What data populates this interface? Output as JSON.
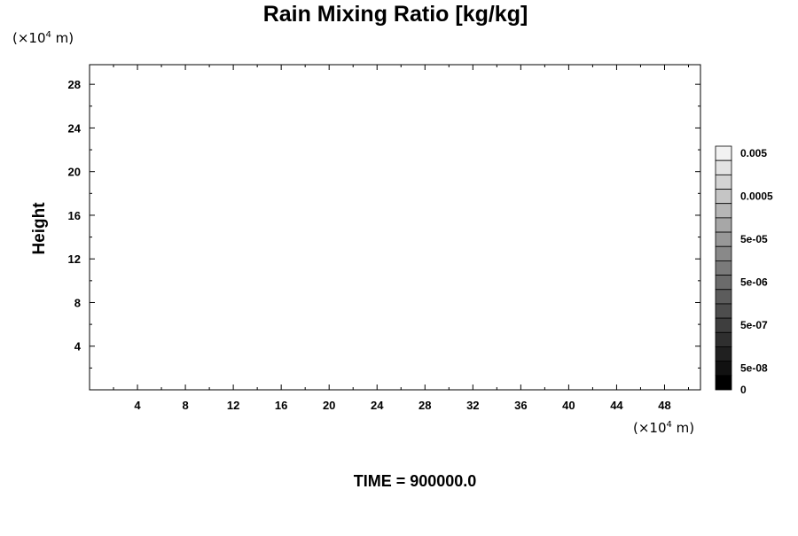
{
  "chart_data": {
    "type": "heatmap",
    "title": "Rain Mixing Ratio [kg/kg]",
    "xlabel": "",
    "ylabel": "Height",
    "x_unit": "(×10⁴ m)",
    "y_unit": "(×10⁴ m)",
    "unit_prefix": "(×10",
    "unit_exp": "4",
    "unit_suffix": " m)",
    "xlim": [
      0,
      51
    ],
    "ylim": [
      0,
      29.8
    ],
    "x_ticks": [
      4,
      8,
      12,
      16,
      20,
      24,
      28,
      32,
      36,
      40,
      44,
      48
    ],
    "y_ticks": [
      4,
      8,
      12,
      16,
      20,
      24,
      28
    ],
    "x_minor_step": 2,
    "y_minor_step": 2,
    "values": [],
    "colorbar": {
      "labels": [
        "0.005",
        "0.0005",
        "5e-05",
        "5e-06",
        "5e-07",
        "5e-08",
        "0"
      ],
      "colors": [
        "#f2f2f2",
        "#e3e3e3",
        "#d4d4d4",
        "#c5c5c5",
        "#b6b6b6",
        "#a7a7a7",
        "#989898",
        "#898989",
        "#7a7a7a",
        "#6b6b6b",
        "#5c5c5c",
        "#4d4d4d",
        "#3e3e3e",
        "#2f2f2f",
        "#202020",
        "#111111",
        "#000000"
      ]
    },
    "time_label": "TIME = 900000.0",
    "grid": false
  }
}
